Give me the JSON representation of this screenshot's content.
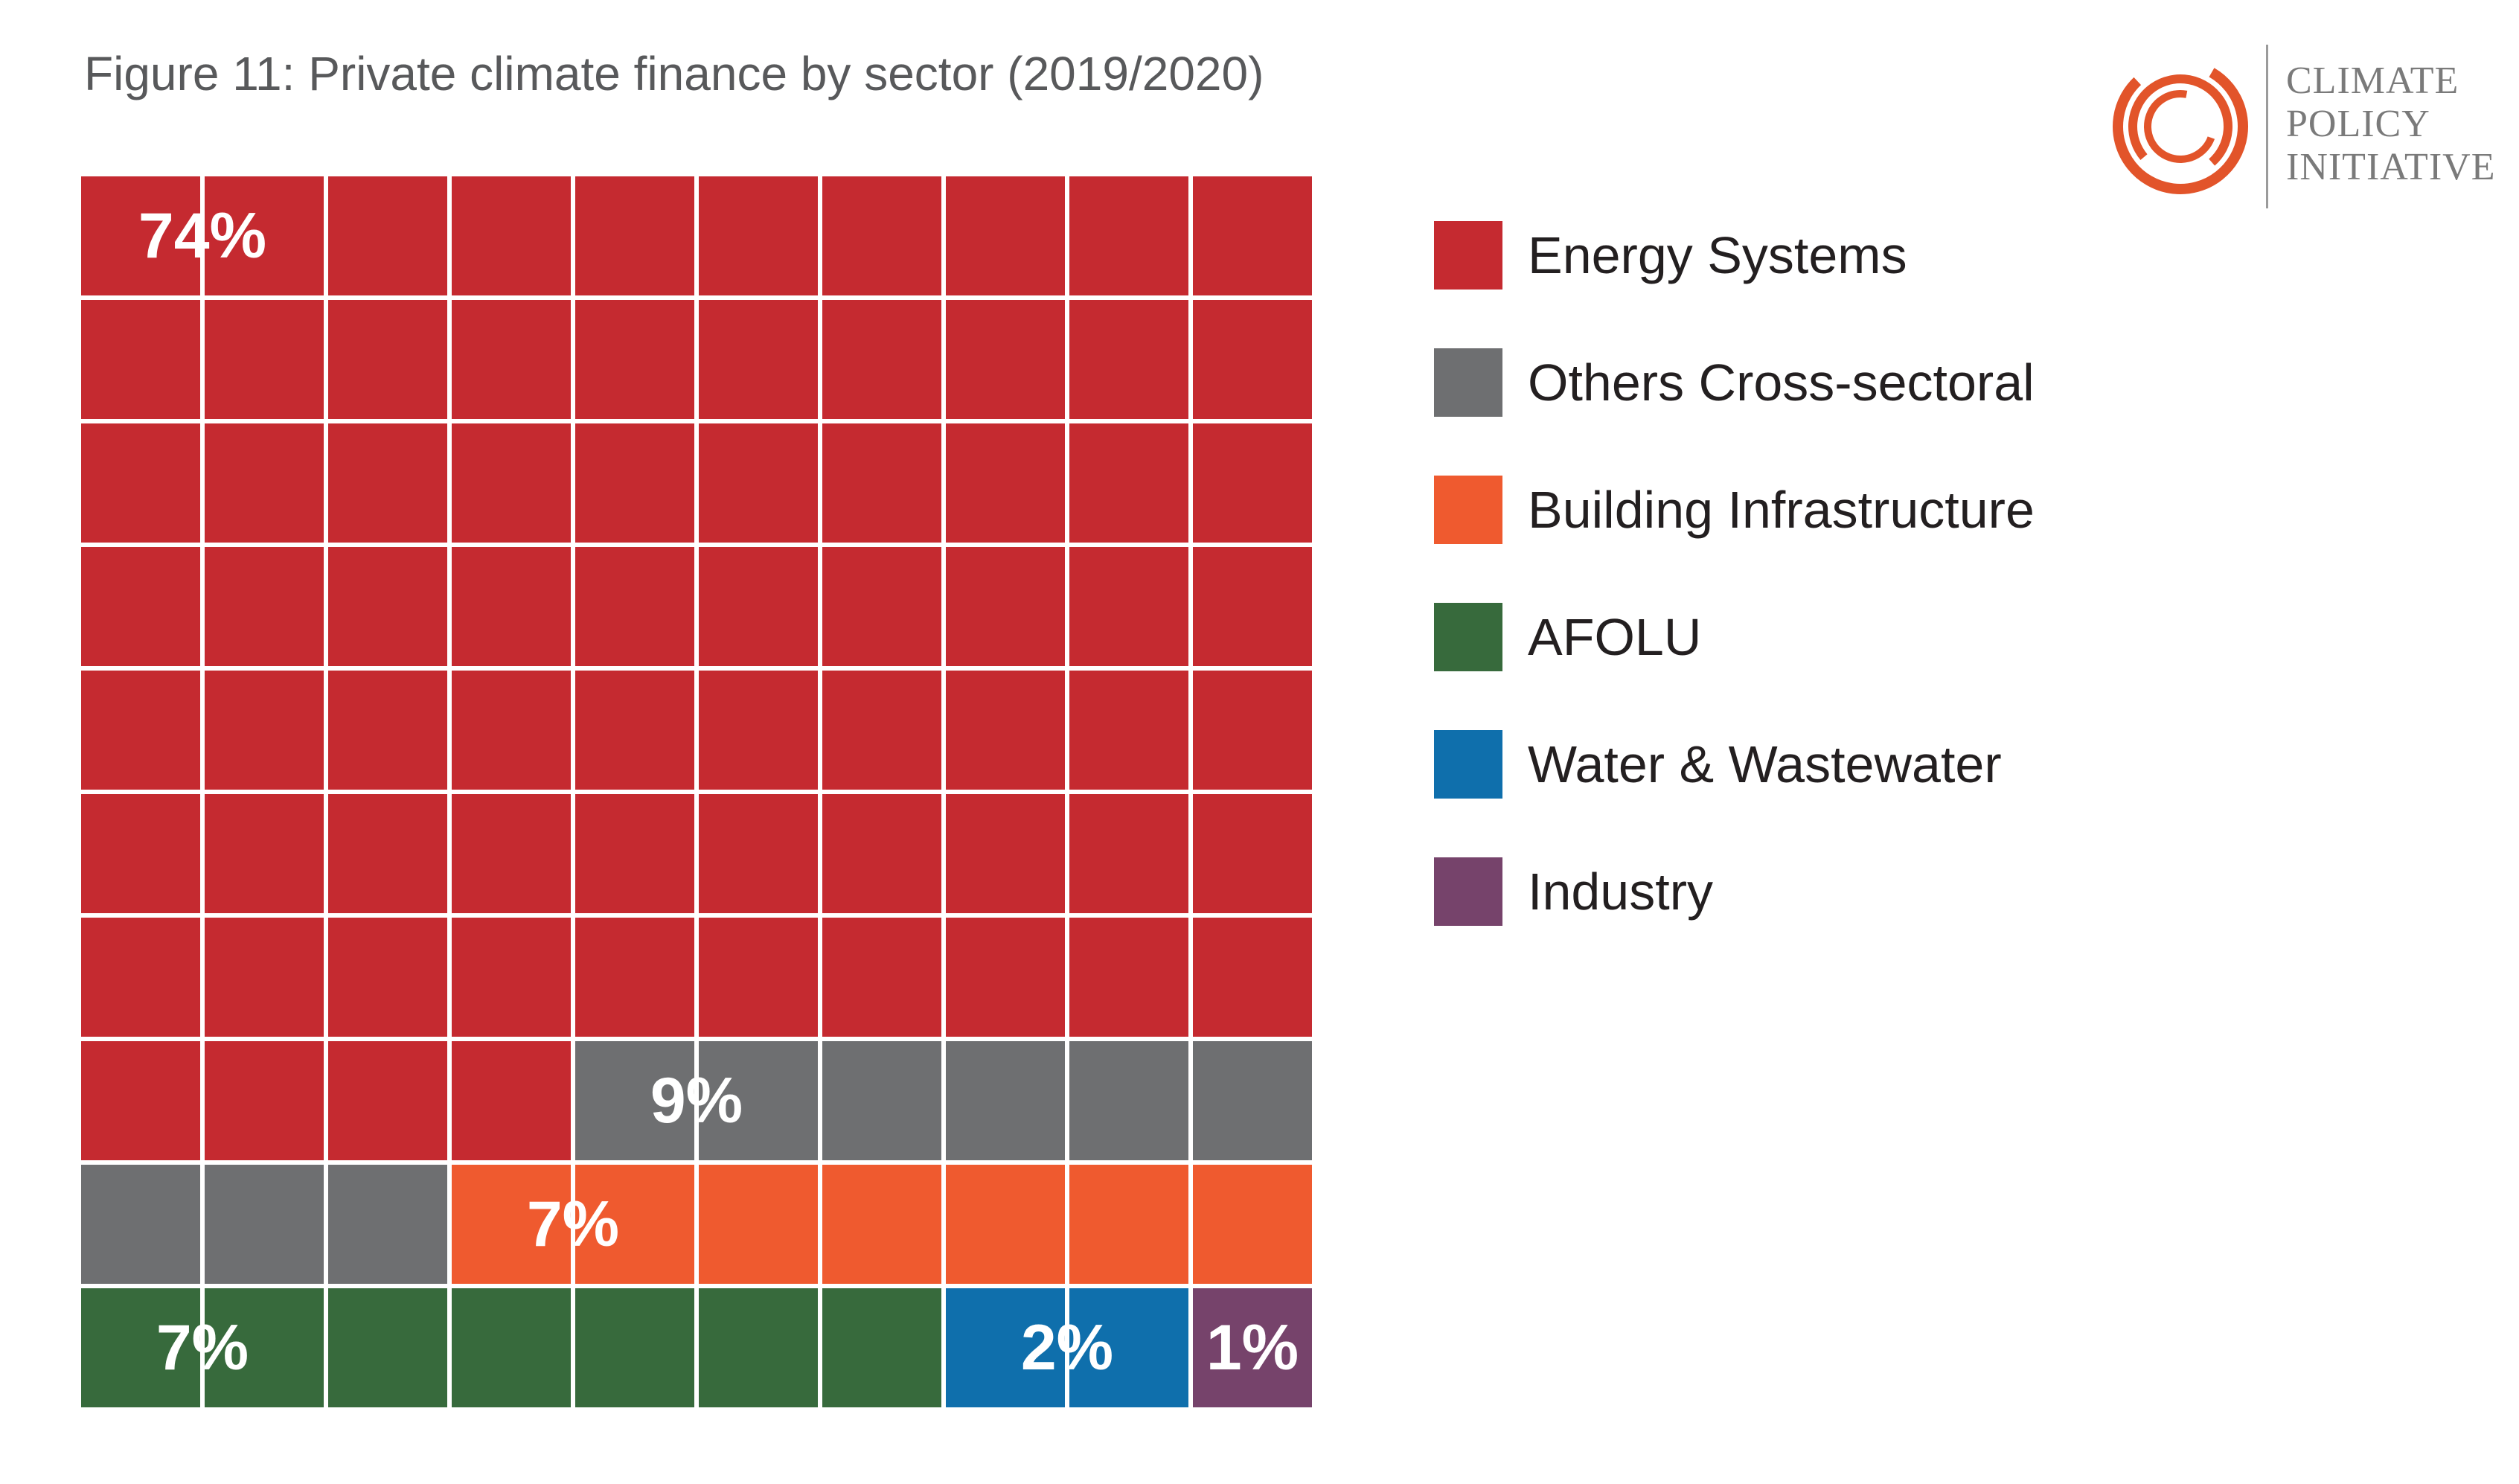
{
  "chart_data": {
    "type": "waffle",
    "title": "Figure 11: Private climate finance by sector (2019/2020)",
    "total_squares": 100,
    "series": [
      {
        "name": "Energy Systems",
        "value": 74,
        "label": "74%",
        "color": "#c52a30"
      },
      {
        "name": "Others Cross-sectoral",
        "value": 9,
        "label": "9%",
        "color": "#6e6f71"
      },
      {
        "name": "Building Infrastructure",
        "value": 7,
        "label": "7%",
        "color": "#ef5a2f"
      },
      {
        "name": "AFOLU",
        "value": 7,
        "label": "7%",
        "color": "#376a3c"
      },
      {
        "name": "Water & Wastewater",
        "value": 2,
        "label": "2%",
        "color": "#0f6fac"
      },
      {
        "name": "Industry",
        "value": 1,
        "label": "1%",
        "color": "#76436b"
      }
    ],
    "legend_position": "right"
  },
  "logo": {
    "lines": [
      "CLIMATE",
      "POLICY",
      "INITIATIVE"
    ],
    "accent_color": "#e2542a"
  }
}
